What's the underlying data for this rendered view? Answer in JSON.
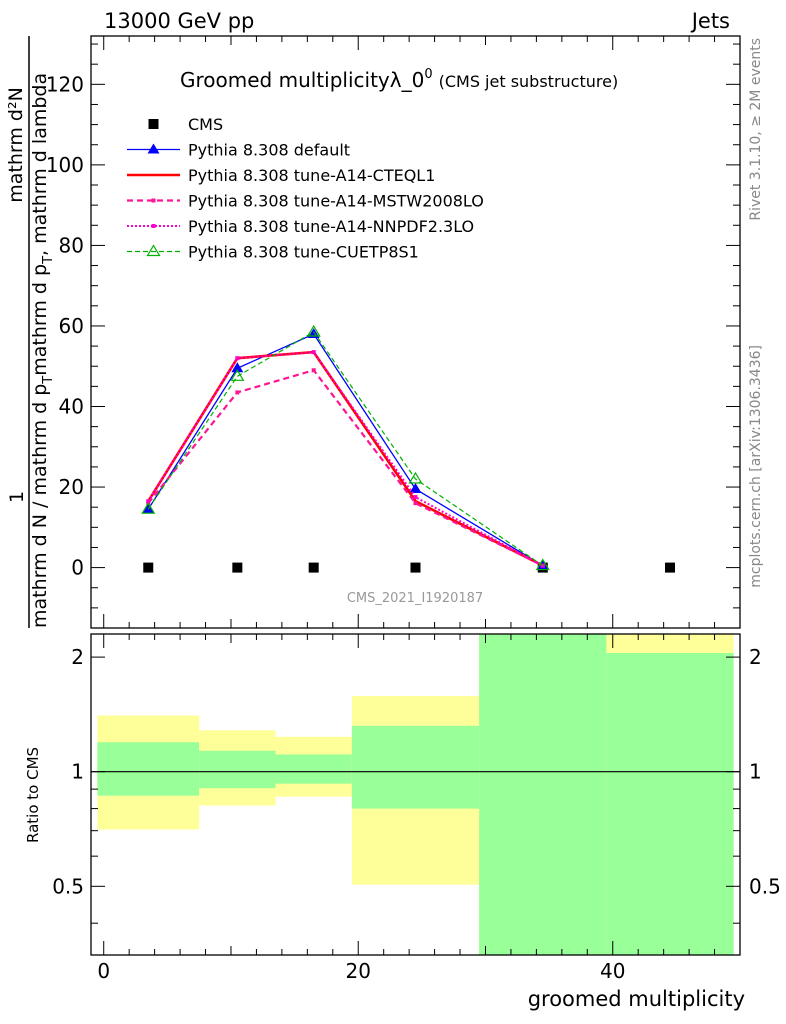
{
  "header": {
    "left": "13000 GeV pp",
    "right": "Jets"
  },
  "title": {
    "main": "Groomed multiplicityλ_0",
    "superscript": "0",
    "sub": "(CMS jet substructure)"
  },
  "side_labels": {
    "rivet": "Rivet 3.1.10, ≥ 2M events",
    "mcplots": "mcplots.cern.ch [arXiv:1306.3436]"
  },
  "watermark": "CMS_2021_I1920187",
  "y_label": {
    "numerator": "mathrm d²N",
    "denominator": "mathrm d N / mathrm d p",
    "denominator_tail": "mathrm d p",
    "denominator_end": "mathrm d lambda",
    "subscript": "T",
    "one": "1"
  },
  "ratio_label": "Ratio to CMS",
  "x_label": "groomed multiplicity",
  "colors": {
    "cms": "#000000",
    "default": "#0000ff",
    "cteql1": "#ff0000",
    "mstw": "#ff1493",
    "nnpdf": "#ff00cc",
    "cuetp": "#00b000",
    "band_inner": "#99ff99",
    "band_outer": "#ffff99"
  },
  "chart_data": {
    "type": "line",
    "x_axis": {
      "range": [
        -1,
        50
      ],
      "ticks": [
        0,
        20,
        40
      ],
      "label": "groomed multiplicity"
    },
    "main_axis": {
      "range": [
        -15,
        132
      ],
      "ticks": [
        0,
        20,
        40,
        60,
        80,
        100,
        120
      ]
    },
    "ratio_axis": {
      "range": [
        0.33,
        2.3
      ],
      "ticks": [
        0.5,
        1,
        2
      ],
      "scale": "log"
    },
    "x": [
      3.5,
      10.5,
      16.5,
      24.5,
      34.5,
      44.5
    ],
    "legend_placement": "top-left",
    "series": [
      {
        "name": "CMS",
        "marker": "square",
        "style": "none",
        "values": [
          0,
          0,
          0,
          0,
          0,
          0
        ]
      },
      {
        "name": "Pythia 8.308 default",
        "marker": "triangle",
        "style": "solid",
        "values": [
          14.5,
          49.5,
          58.0,
          19.5,
          0.5,
          null
        ]
      },
      {
        "name": "Pythia 8.308 tune-A14-CTEQL1",
        "marker": "none",
        "style": "solid-thick",
        "values": [
          16.5,
          52.0,
          53.5,
          16.5,
          0.5,
          null
        ]
      },
      {
        "name": "Pythia 8.308 tune-A14-MSTW2008LO",
        "marker": "small",
        "style": "dashed",
        "values": [
          16.0,
          43.5,
          49.0,
          16.0,
          0.5,
          null
        ]
      },
      {
        "name": "Pythia 8.308 tune-A14-NNPDF2.3LO",
        "marker": "small",
        "style": "dotted",
        "values": [
          16.5,
          52.0,
          53.5,
          17.5,
          0.5,
          null
        ]
      },
      {
        "name": "Pythia 8.308 tune-CUETP8S1",
        "marker": "open-triangle",
        "style": "dashed-small",
        "values": [
          14.5,
          47.5,
          58.5,
          22.0,
          0.5,
          null
        ]
      }
    ],
    "ratio_bands": [
      {
        "xlo": -0.5,
        "xhi": 7.5,
        "inner": [
          0.865,
          1.195
        ],
        "outer": [
          0.705,
          1.405
        ]
      },
      {
        "xlo": 7.5,
        "xhi": 13.5,
        "inner": [
          0.905,
          1.135
        ],
        "outer": [
          0.815,
          1.285
        ]
      },
      {
        "xlo": 13.5,
        "xhi": 19.5,
        "inner": [
          0.93,
          1.11
        ],
        "outer": [
          0.86,
          1.235
        ]
      },
      {
        "xlo": 19.5,
        "xhi": 29.5,
        "inner": [
          0.8,
          1.32
        ],
        "outer": [
          0.505,
          1.58
        ]
      },
      {
        "xlo": 29.5,
        "xhi": 39.5,
        "inner": [
          0.33,
          2.3
        ],
        "outer": [
          0.33,
          2.3
        ]
      },
      {
        "xlo": 39.5,
        "xhi": 49.5,
        "inner": [
          0.33,
          2.05
        ],
        "outer": [
          0.33,
          2.3
        ]
      }
    ]
  }
}
